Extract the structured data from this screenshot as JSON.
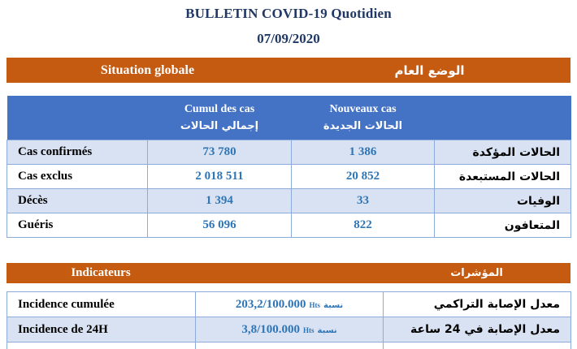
{
  "title": "BULLETIN COVID-19 Quotidien",
  "date": "07/09/2020",
  "colors": {
    "accent_orange": "#C55A11",
    "header_blue": "#4472C4",
    "row_alt_blue": "#D9E2F3",
    "border_blue": "#8EAADB",
    "value_blue": "#2E75B6",
    "title_navy": "#1F3864"
  },
  "global_section": {
    "header_fr": "Situation globale",
    "header_ar": "الوضع العام",
    "columns": {
      "cumul_fr": "Cumul des cas",
      "cumul_ar": "إجمالي الحالات",
      "nouveaux_fr": "Nouveaux cas",
      "nouveaux_ar": "الحالات الجديدة"
    },
    "rows": [
      {
        "label_fr": "Cas confirmés",
        "cumul": "73 780",
        "nouveaux": "1 386",
        "label_ar": "الحالات المؤكدة"
      },
      {
        "label_fr": "Cas exclus",
        "cumul": "2 018 511",
        "nouveaux": "20 852",
        "label_ar": "الحالات المستبعدة"
      },
      {
        "label_fr": "Décès",
        "cumul": "1 394",
        "nouveaux": "33",
        "label_ar": "الوفيات"
      },
      {
        "label_fr": "Guéris",
        "cumul": "56 096",
        "nouveaux": "822",
        "label_ar": "المتعافون"
      }
    ]
  },
  "indicators_section": {
    "header_fr": "Indicateurs",
    "header_ar": "المؤشرات",
    "rows": [
      {
        "label_fr": "Incidence cumulée",
        "value": "203,2/100.000",
        "unit": "Hts",
        "unit_ar": "نسبة",
        "label_ar": "معدل الإصابة التراكمي"
      },
      {
        "label_fr": "Incidence de 24H",
        "value": "3,8/100.000",
        "unit": "Hts",
        "unit_ar": "نسبة",
        "label_ar": "معدل الإصابة في 24 ساعة"
      }
    ]
  }
}
